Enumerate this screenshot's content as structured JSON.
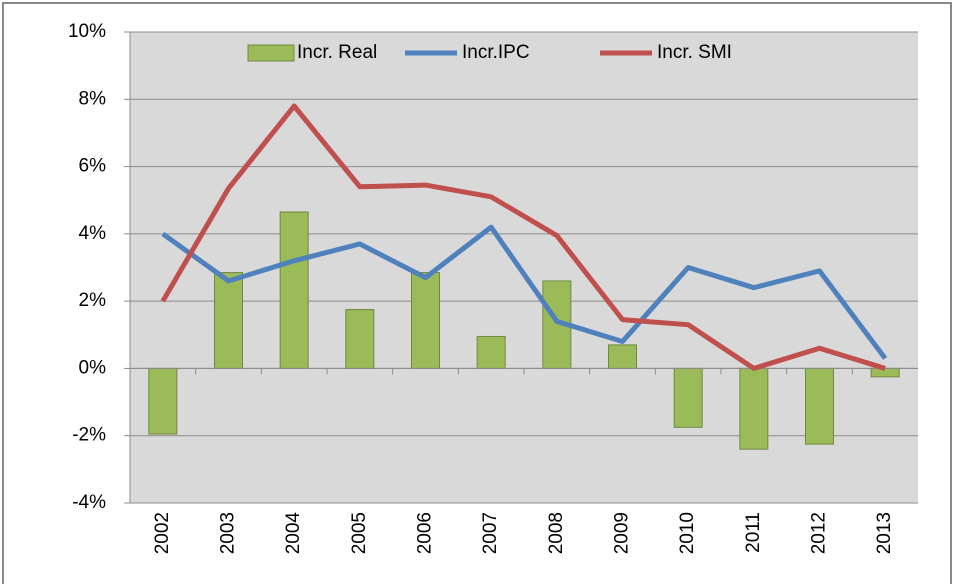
{
  "chart_data": {
    "type": "combo",
    "categories": [
      "2002",
      "2003",
      "2004",
      "2005",
      "2006",
      "2007",
      "2008",
      "2009",
      "2010",
      "2011",
      "2012",
      "2013"
    ],
    "series": [
      {
        "name": "Incr. Real",
        "type": "bar",
        "color": "#9bbb59",
        "values": [
          -1.95,
          2.85,
          4.65,
          1.75,
          2.85,
          0.95,
          2.6,
          0.7,
          -1.75,
          -2.4,
          -2.25,
          -0.25
        ]
      },
      {
        "name": "Incr.IPC",
        "type": "line",
        "color": "#4f81bd",
        "values": [
          4.0,
          2.6,
          3.2,
          3.7,
          2.7,
          4.2,
          1.4,
          0.8,
          3.0,
          2.4,
          2.9,
          0.3
        ]
      },
      {
        "name": "Incr. SMI",
        "type": "line",
        "color": "#c0504d",
        "values": [
          2.0,
          5.35,
          7.8,
          5.4,
          5.45,
          5.1,
          3.95,
          1.45,
          1.3,
          0.0,
          0.6,
          0.0
        ]
      }
    ],
    "ylim": [
      -4,
      10
    ],
    "yticks": [
      {
        "value": -4,
        "label": "-4%"
      },
      {
        "value": -2,
        "label": "-2%"
      },
      {
        "value": 0,
        "label": "0%"
      },
      {
        "value": 2,
        "label": "2%"
      },
      {
        "value": 4,
        "label": "4%"
      },
      {
        "value": 6,
        "label": "6%"
      },
      {
        "value": 8,
        "label": "8%"
      },
      {
        "value": 10,
        "label": "10%"
      }
    ],
    "grid": true,
    "legend": "top"
  }
}
